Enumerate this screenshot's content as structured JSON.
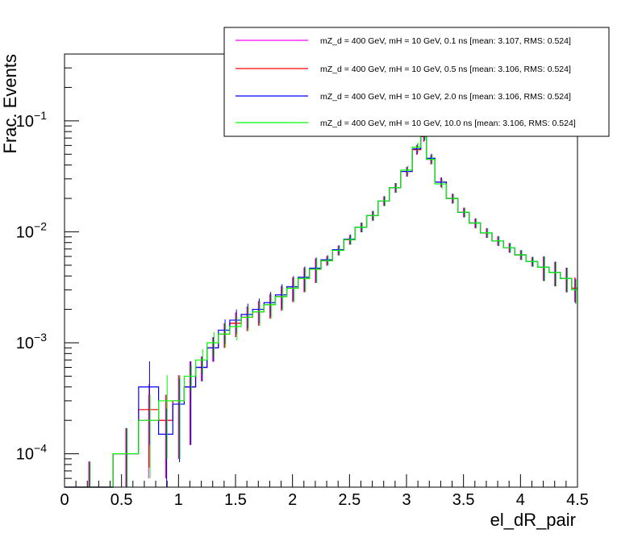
{
  "chart_data": {
    "type": "line",
    "style": "step-histogram",
    "title": "",
    "xlabel": "el_dR_pair",
    "ylabel": "Frac. Events",
    "xlim": [
      0,
      4.5
    ],
    "ylim": [
      5e-05,
      0.4
    ],
    "yscale": "log",
    "x_ticks": [
      "0",
      "0.5",
      "1",
      "1.5",
      "2",
      "2.5",
      "3",
      "3.5",
      "4",
      "4.5"
    ],
    "y_ticks": [
      {
        "base": "10",
        "exp": "−4"
      },
      {
        "base": "10",
        "exp": "−3"
      },
      {
        "base": "10",
        "exp": "−2"
      },
      {
        "base": "10",
        "exp": "−1"
      }
    ],
    "legend_position": "top-right",
    "peak": {
      "x": 3.12,
      "y": 0.075
    },
    "x_bin_centers": [
      0.3,
      0.55,
      0.75,
      0.9,
      1.0,
      1.1,
      1.2,
      1.3,
      1.4,
      1.5,
      1.6,
      1.7,
      1.8,
      1.9,
      2.0,
      2.1,
      2.2,
      2.3,
      2.4,
      2.5,
      2.6,
      2.7,
      2.8,
      2.9,
      3.0,
      3.1,
      3.15,
      3.2,
      3.3,
      3.4,
      3.5,
      3.6,
      3.7,
      3.8,
      3.9,
      4.0,
      4.1,
      4.2,
      4.3,
      4.4,
      4.5
    ],
    "series": [
      {
        "name": "mZ_d = 400 GeV, mH = 10 GeV, 0.1 ns [mean: 3.107, RMS: 0.524]",
        "color": "#ff00ff",
        "values": [
          5e-05,
          0.0001,
          0.0002,
          0.0002,
          0.0003,
          0.0004,
          0.0006,
          0.0009,
          0.0012,
          0.0015,
          0.0017,
          0.0019,
          0.0022,
          0.0026,
          0.0031,
          0.0038,
          0.0046,
          0.0055,
          0.0068,
          0.0085,
          0.011,
          0.014,
          0.019,
          0.025,
          0.035,
          0.055,
          0.072,
          0.045,
          0.028,
          0.02,
          0.015,
          0.012,
          0.0098,
          0.0083,
          0.0072,
          0.0062,
          0.0054,
          0.0048,
          0.0043,
          0.0038,
          0.0031
        ]
      },
      {
        "name": "mZ_d = 400 GeV, mH = 10 GeV, 0.5 ns [mean: 3.106, RMS: 0.524]",
        "color": "#ff0000",
        "values": [
          5e-05,
          0.0001,
          0.00025,
          0.0002,
          0.0003,
          0.0004,
          0.0006,
          0.0009,
          0.0012,
          0.0015,
          0.0017,
          0.0019,
          0.0022,
          0.0026,
          0.0031,
          0.0038,
          0.0046,
          0.0055,
          0.0068,
          0.0085,
          0.011,
          0.014,
          0.019,
          0.025,
          0.035,
          0.055,
          0.072,
          0.045,
          0.028,
          0.02,
          0.015,
          0.012,
          0.0098,
          0.0083,
          0.0072,
          0.0062,
          0.0054,
          0.0048,
          0.0043,
          0.0038,
          0.0031
        ]
      },
      {
        "name": "mZ_d = 400 GeV, mH = 10 GeV, 2.0 ns [mean: 3.106, RMS: 0.524]",
        "color": "#0000ff",
        "values": [
          5e-05,
          0.0001,
          0.0004,
          0.00015,
          0.00028,
          0.0004,
          0.0006,
          0.0009,
          0.0013,
          0.0016,
          0.0018,
          0.002,
          0.0023,
          0.0027,
          0.0032,
          0.0039,
          0.0047,
          0.0056,
          0.0069,
          0.0086,
          0.011,
          0.014,
          0.019,
          0.025,
          0.035,
          0.056,
          0.074,
          0.046,
          0.028,
          0.02,
          0.015,
          0.012,
          0.0098,
          0.0083,
          0.0072,
          0.0062,
          0.0054,
          0.0048,
          0.0043,
          0.0038,
          0.003
        ]
      },
      {
        "name": "mZ_d = 400 GeV, mH = 10 GeV, 10.0 ns [mean: 3.106, RMS: 0.524]",
        "color": "#00ff00",
        "values": [
          5e-05,
          0.0001,
          0.0002,
          0.0003,
          0.0003,
          0.0005,
          0.0007,
          0.001,
          0.0012,
          0.0014,
          0.0017,
          0.0019,
          0.0022,
          0.0026,
          0.0031,
          0.0038,
          0.0046,
          0.0055,
          0.0068,
          0.0085,
          0.011,
          0.014,
          0.019,
          0.025,
          0.036,
          0.058,
          0.075,
          0.045,
          0.027,
          0.02,
          0.015,
          0.012,
          0.0098,
          0.0083,
          0.0072,
          0.0062,
          0.0054,
          0.0048,
          0.0043,
          0.0038,
          0.003
        ]
      }
    ]
  }
}
